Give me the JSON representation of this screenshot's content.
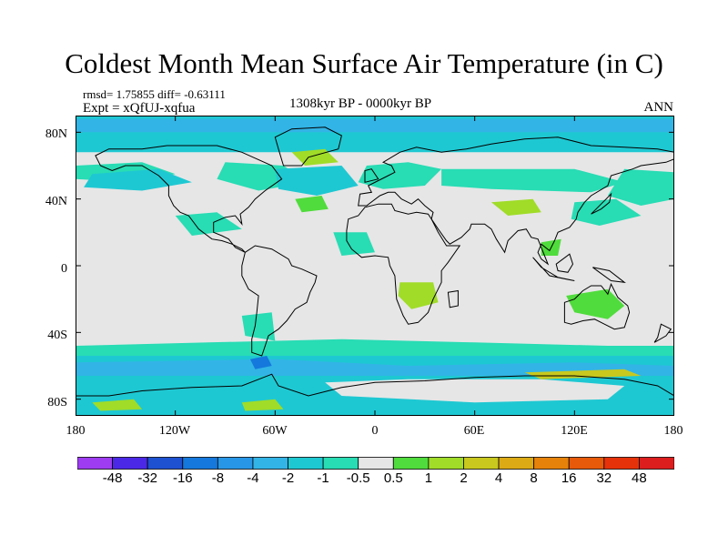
{
  "title": "Coldest Month Mean Surface Air Temperature (in C)",
  "stats": "rmsd= 1.75855  diff= -0.63111",
  "experiment": "Expt = xQfUJ-xqfua",
  "period": "1308kyr BP - 0000kyr BP",
  "season": "ANN",
  "lat_labels": [
    "80N",
    "40N",
    "0",
    "40S",
    "80S"
  ],
  "lon_labels": [
    "180",
    "120W",
    "60W",
    "0",
    "60E",
    "120E",
    "180"
  ],
  "colorbar": {
    "labels": [
      "-48",
      "-32",
      "-16",
      "-8",
      "-4",
      "-2",
      "-1",
      "-0.5",
      "0.5",
      "1",
      "2",
      "4",
      "8",
      "16",
      "32",
      "48"
    ],
    "colors": [
      "#9d3cf0",
      "#4b28e6",
      "#1e50d2",
      "#1478dc",
      "#2896e6",
      "#32b4e6",
      "#1ec8d2",
      "#28dcb4",
      "#e6e6e6",
      "#50dc3c",
      "#a0dc28",
      "#c8c81e",
      "#dcaa14",
      "#e6820a",
      "#e65a0a",
      "#e6320a",
      "#dc1e1e"
    ]
  },
  "field_colors": {
    "neutral": "#e6e6e6",
    "cool_1": "#28dcb4",
    "cool_2": "#1ec8d2",
    "cool_3": "#32b4e6",
    "cool_4": "#1478dc",
    "warm_1": "#50dc3c",
    "warm_2": "#a0dc28",
    "warm_3": "#c8c81e"
  }
}
